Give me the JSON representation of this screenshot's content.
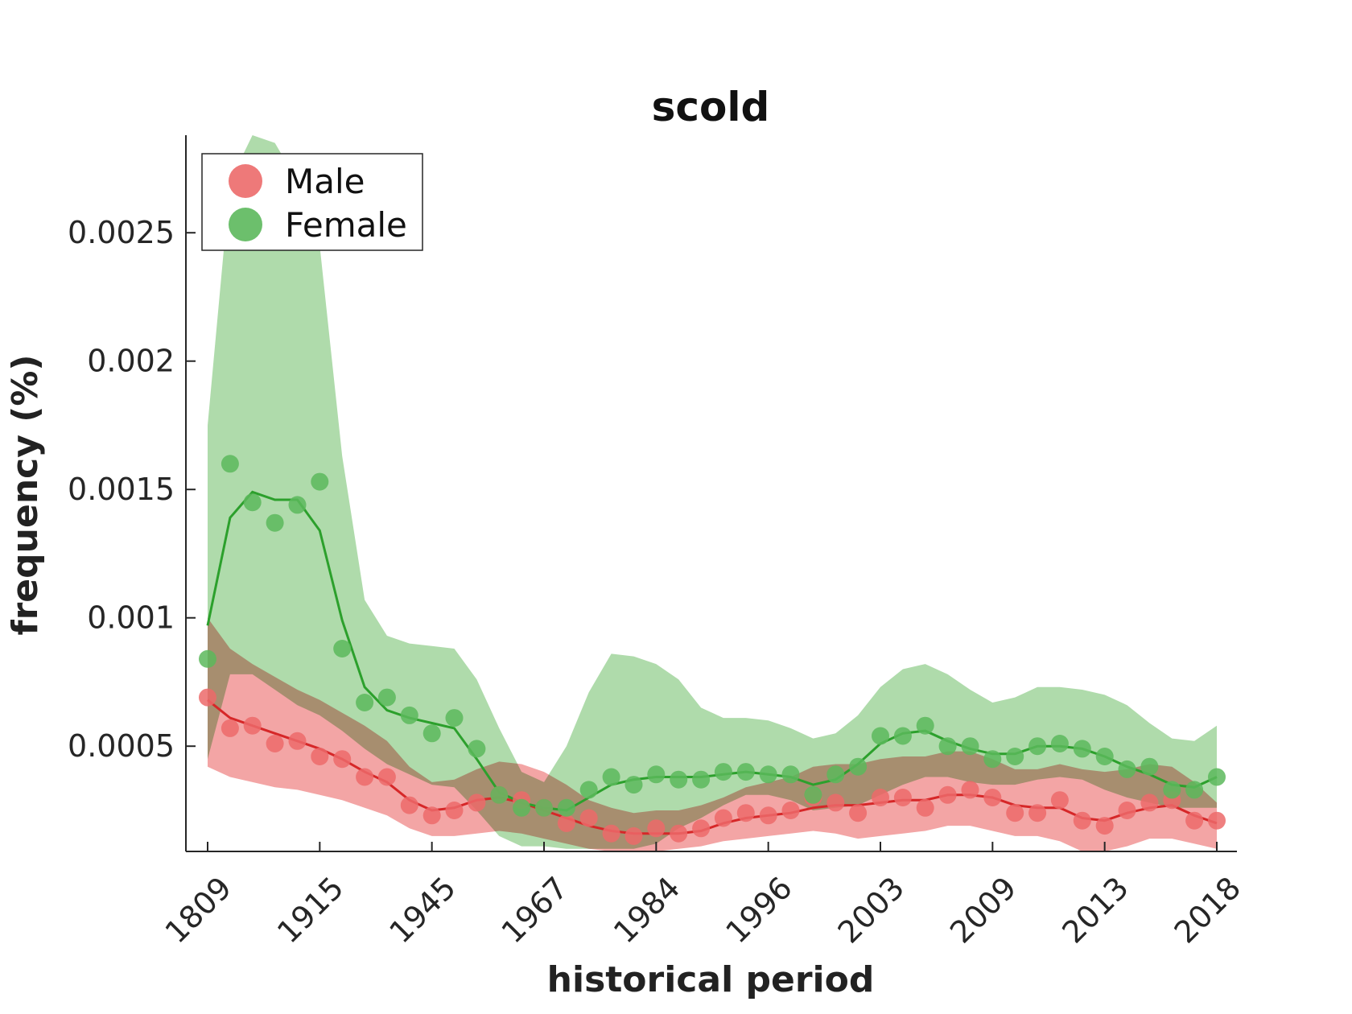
{
  "chart_data": {
    "type": "line",
    "title": "scold",
    "xlabel": "historical period",
    "ylabel": "frequency (%)",
    "categories": [
      "1809",
      "",
      "",
      "",
      "",
      "1915",
      "",
      "",
      "",
      "",
      "1945",
      "",
      "",
      "",
      "",
      "1967",
      "",
      "",
      "",
      "",
      "1984",
      "",
      "",
      "",
      "",
      "1996",
      "",
      "",
      "",
      "",
      "2003",
      "",
      "",
      "",
      "",
      "2009",
      "",
      "",
      "",
      "",
      "2013",
      "",
      "",
      "",
      "",
      "2018"
    ],
    "xticks": [
      "1809",
      "1915",
      "1945",
      "1967",
      "1984",
      "1996",
      "2003",
      "2009",
      "2013",
      "2018"
    ],
    "yticks": [
      {
        "value": 0.0005,
        "label": "0.0005"
      },
      {
        "value": 0.001,
        "label": "0.001"
      },
      {
        "value": 0.0015,
        "label": "0.0015"
      },
      {
        "value": 0.002,
        "label": "0.002"
      },
      {
        "value": 0.0025,
        "label": "0.0025"
      }
    ],
    "ylim": [
      9e-05,
      0.00288
    ],
    "grid": false,
    "legend_position": "top-left",
    "series": [
      {
        "name": "Male",
        "color": "#d62728",
        "marker_color": "#ec6a6a",
        "band_color": "#f08c8c",
        "points": [
          0.00069,
          0.00057,
          0.00058,
          0.00051,
          0.00052,
          0.00046,
          0.00045,
          0.00038,
          0.00038,
          0.00027,
          0.00023,
          0.00025,
          0.00028,
          0.00031,
          0.00029,
          0.00026,
          0.0002,
          0.00022,
          0.00016,
          0.00015,
          0.00018,
          0.00016,
          0.00018,
          0.00022,
          0.00024,
          0.00023,
          0.00025,
          0.0003,
          0.00028,
          0.00024,
          0.0003,
          0.0003,
          0.00026,
          0.00031,
          0.00033,
          0.0003,
          0.00024,
          0.00024,
          0.00029,
          0.00021,
          0.00019,
          0.00025,
          0.00028,
          0.00029,
          0.00021,
          0.00021
        ],
        "trend": [
          0.00068,
          0.00061,
          0.00058,
          0.00055,
          0.00052,
          0.00049,
          0.00045,
          0.0004,
          0.00036,
          0.00029,
          0.00025,
          0.00026,
          0.00029,
          0.0003,
          0.00028,
          0.00025,
          0.00022,
          0.00019,
          0.00017,
          0.00016,
          0.00016,
          0.00016,
          0.00017,
          0.0002,
          0.00022,
          0.00023,
          0.00024,
          0.00026,
          0.00027,
          0.00027,
          0.00028,
          0.00029,
          0.00029,
          0.00031,
          0.00031,
          0.0003,
          0.00027,
          0.00026,
          0.00026,
          0.00022,
          0.00021,
          0.00024,
          0.00026,
          0.00027,
          0.00023,
          0.0002
        ],
        "band_low": [
          0.00042,
          0.00038,
          0.00036,
          0.00034,
          0.00033,
          0.00031,
          0.00029,
          0.00026,
          0.00023,
          0.00018,
          0.00015,
          0.00015,
          0.00016,
          0.00017,
          0.00016,
          0.00014,
          0.00012,
          0.0001,
          9e-05,
          9e-05,
          9e-05,
          0.0001,
          0.00011,
          0.00013,
          0.00014,
          0.00015,
          0.00016,
          0.00017,
          0.00016,
          0.00014,
          0.00015,
          0.00016,
          0.00017,
          0.00019,
          0.00019,
          0.00017,
          0.00015,
          0.00015,
          0.00013,
          9e-05,
          8e-05,
          0.00011,
          0.00014,
          0.00014,
          0.00012,
          0.0001
        ],
        "band_high": [
          0.001,
          0.00088,
          0.00082,
          0.00077,
          0.00072,
          0.00068,
          0.00063,
          0.00058,
          0.00052,
          0.00042,
          0.00036,
          0.00037,
          0.00041,
          0.00044,
          0.00043,
          0.0004,
          0.00035,
          0.00029,
          0.00026,
          0.00024,
          0.00025,
          0.00025,
          0.00027,
          0.0003,
          0.00034,
          0.00036,
          0.00038,
          0.00042,
          0.00043,
          0.00043,
          0.00045,
          0.00046,
          0.00046,
          0.00048,
          0.00048,
          0.00045,
          0.00041,
          0.00041,
          0.00043,
          0.00041,
          0.0004,
          0.00041,
          0.00043,
          0.00042,
          0.00036,
          0.00028
        ]
      },
      {
        "name": "Female",
        "color": "#2ca02c",
        "marker_color": "#5cb85c",
        "band_color": "#99d194",
        "points": [
          0.00084,
          0.0016,
          0.00145,
          0.00137,
          0.00144,
          0.00153,
          0.00088,
          0.00067,
          0.00069,
          0.00062,
          0.00055,
          0.00061,
          0.00049,
          0.00031,
          0.00026,
          0.00026,
          0.00026,
          0.00033,
          0.00038,
          0.00035,
          0.00039,
          0.00037,
          0.00037,
          0.0004,
          0.0004,
          0.00039,
          0.00039,
          0.00031,
          0.00039,
          0.00042,
          0.00054,
          0.00054,
          0.00058,
          0.0005,
          0.0005,
          0.00045,
          0.00046,
          0.0005,
          0.00051,
          0.00049,
          0.00046,
          0.00041,
          0.00042,
          0.00033,
          0.00033,
          0.00038
        ],
        "trend": [
          0.00097,
          0.00139,
          0.00149,
          0.00146,
          0.00146,
          0.00134,
          0.00099,
          0.00073,
          0.00064,
          0.00061,
          0.00059,
          0.00057,
          0.00045,
          0.00032,
          0.00028,
          0.00026,
          0.00025,
          0.0003,
          0.00035,
          0.00037,
          0.00038,
          0.00038,
          0.00038,
          0.00039,
          0.0004,
          0.00039,
          0.00038,
          0.00035,
          0.00037,
          0.00043,
          0.00051,
          0.00055,
          0.00056,
          0.00052,
          0.00049,
          0.00047,
          0.00047,
          0.0005,
          0.0005,
          0.00049,
          0.00046,
          0.00042,
          0.00039,
          0.00035,
          0.00034,
          0.00038
        ],
        "band_low": [
          0.00045,
          0.00078,
          0.00078,
          0.00072,
          0.00066,
          0.00062,
          0.00056,
          0.00049,
          0.00043,
          0.00039,
          0.00035,
          0.00034,
          0.00025,
          0.00015,
          0.00011,
          0.00011,
          0.0001,
          0.0001,
          0.0001,
          0.0001,
          0.00012,
          0.00018,
          0.00022,
          0.00027,
          0.00031,
          0.00031,
          0.00029,
          0.00025,
          0.00026,
          0.00027,
          0.00031,
          0.00035,
          0.00038,
          0.00038,
          0.00036,
          0.00035,
          0.00035,
          0.00037,
          0.00038,
          0.00037,
          0.00033,
          0.0003,
          0.00028,
          0.00026,
          0.00026,
          0.00026
        ],
        "band_high": [
          0.00175,
          0.0027,
          0.0029,
          0.00285,
          0.0027,
          0.00245,
          0.00163,
          0.00107,
          0.00093,
          0.0009,
          0.00089,
          0.00088,
          0.00076,
          0.00057,
          0.0004,
          0.00036,
          0.0005,
          0.00071,
          0.00086,
          0.00085,
          0.00082,
          0.00076,
          0.00065,
          0.00061,
          0.00061,
          0.0006,
          0.00057,
          0.00053,
          0.00055,
          0.00062,
          0.00073,
          0.0008,
          0.00082,
          0.00078,
          0.00072,
          0.00067,
          0.00069,
          0.00073,
          0.00073,
          0.00072,
          0.0007,
          0.00066,
          0.00059,
          0.00053,
          0.00052,
          0.00058
        ]
      }
    ]
  }
}
